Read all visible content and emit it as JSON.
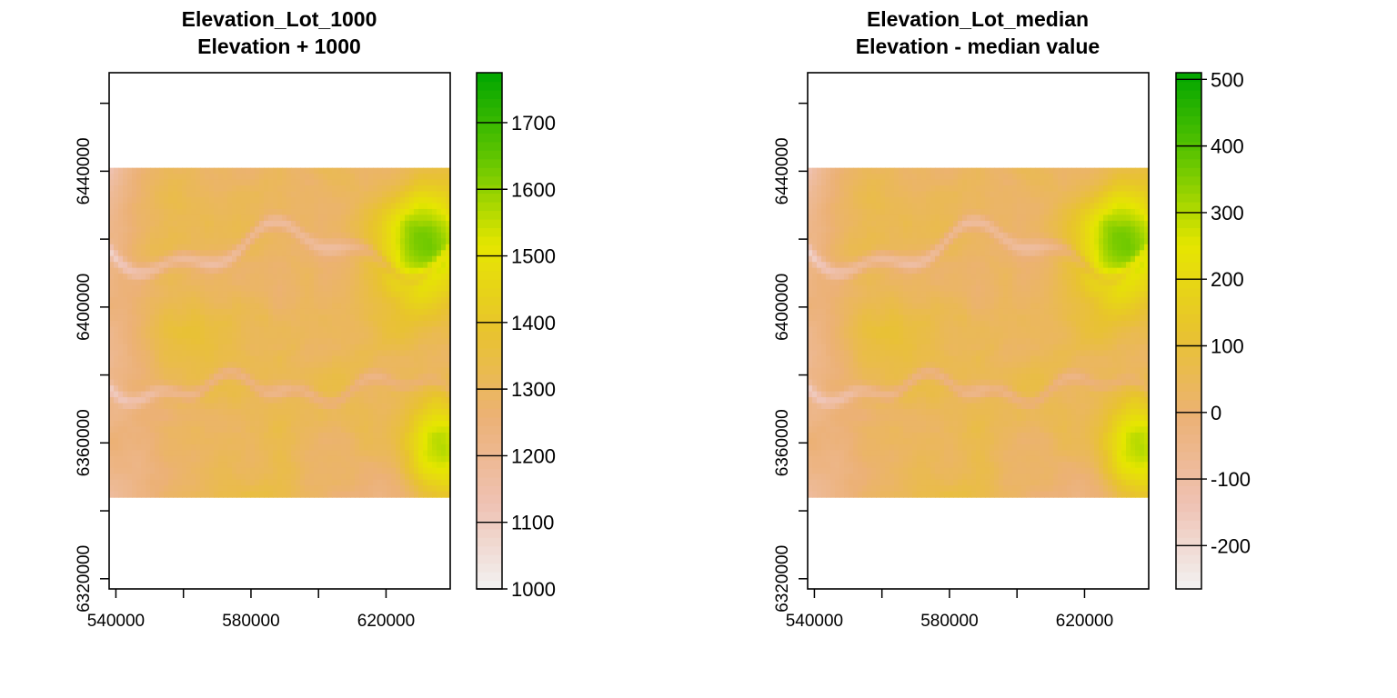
{
  "chart_data": [
    {
      "type": "heatmap",
      "title": "Elevation_Lot_1000",
      "subtitle": "Elevation + 1000",
      "xlabel": "",
      "ylabel": "",
      "x_ticks": [
        540000,
        580000,
        620000
      ],
      "y_ticks": [
        6320000,
        6360000,
        6400000,
        6440000
      ],
      "xlim": [
        538000,
        639000
      ],
      "ylim": [
        6317000,
        6469000
      ],
      "raster_extent": {
        "x": [
          538000,
          639000
        ],
        "y": [
          6344000,
          6441000
        ]
      },
      "colorbar": {
        "range": [
          1000,
          1775
        ],
        "ticks": [
          1000,
          1100,
          1200,
          1300,
          1400,
          1500,
          1600,
          1700
        ]
      }
    },
    {
      "type": "heatmap",
      "title": "Elevation_Lot_median",
      "subtitle": "Elevation - median value",
      "xlabel": "",
      "ylabel": "",
      "x_ticks": [
        540000,
        580000,
        620000
      ],
      "y_ticks": [
        6320000,
        6360000,
        6400000,
        6440000
      ],
      "xlim": [
        538000,
        639000
      ],
      "ylim": [
        6317000,
        6469000
      ],
      "raster_extent": {
        "x": [
          538000,
          639000
        ],
        "y": [
          6344000,
          6441000
        ]
      },
      "colorbar": {
        "range": [
          -265,
          510
        ],
        "ticks": [
          -200,
          -100,
          0,
          100,
          200,
          300,
          400,
          500
        ]
      }
    }
  ],
  "colors": {
    "palette": [
      "#f2f2f2",
      "#efc2b3",
      "#ecb176",
      "#e8c32e",
      "#e6e600",
      "#63c600",
      "#00a600"
    ]
  }
}
